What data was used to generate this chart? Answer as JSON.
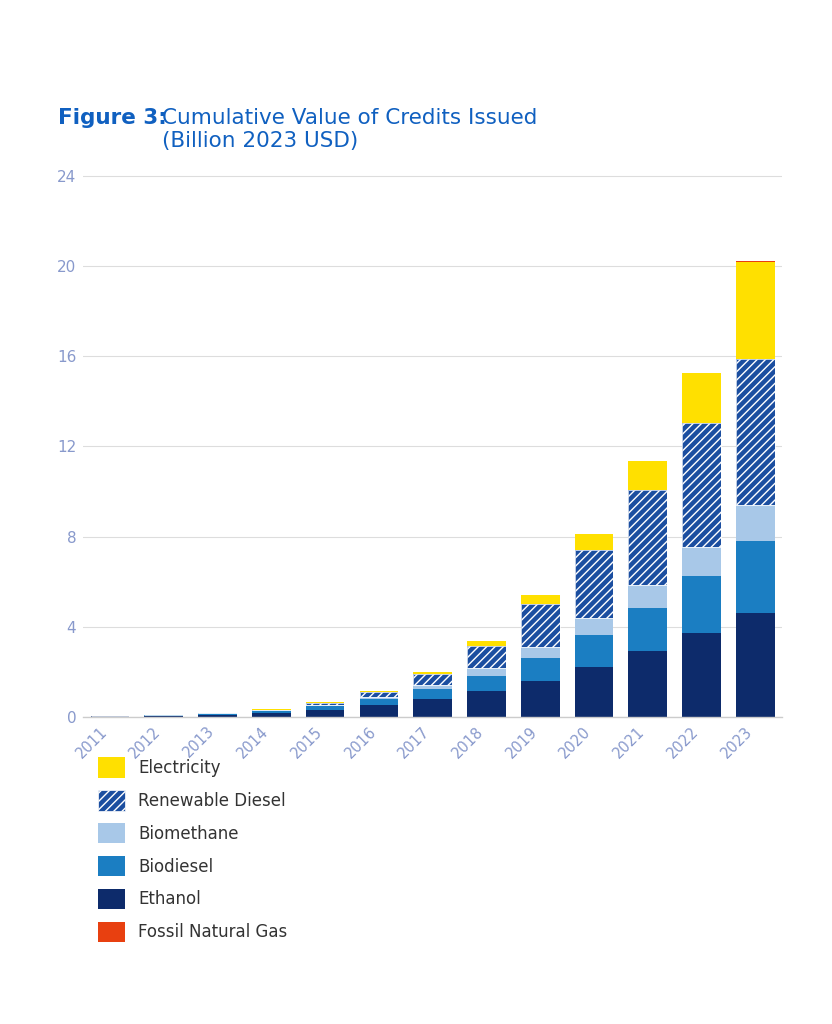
{
  "years": [
    2011,
    2012,
    2013,
    2014,
    2015,
    2016,
    2017,
    2018,
    2019,
    2020,
    2021,
    2022,
    2023
  ],
  "series": {
    "Ethanol": [
      0.02,
      0.05,
      0.1,
      0.18,
      0.32,
      0.52,
      0.8,
      1.15,
      1.6,
      2.2,
      2.9,
      3.7,
      4.6
    ],
    "Biodiesel": [
      0.01,
      0.02,
      0.04,
      0.08,
      0.15,
      0.25,
      0.42,
      0.68,
      1.0,
      1.45,
      1.95,
      2.55,
      3.2
    ],
    "Biomethane": [
      0.0,
      0.0,
      0.01,
      0.02,
      0.05,
      0.1,
      0.18,
      0.32,
      0.52,
      0.75,
      1.0,
      1.3,
      1.6
    ],
    "Renewable Diesel": [
      0.0,
      0.01,
      0.02,
      0.04,
      0.1,
      0.22,
      0.48,
      0.98,
      1.88,
      3.0,
      4.2,
      5.5,
      6.5
    ],
    "Electricity": [
      0.0,
      0.0,
      0.01,
      0.02,
      0.03,
      0.06,
      0.12,
      0.22,
      0.4,
      0.7,
      1.3,
      2.2,
      4.3
    ],
    "Fossil Natural Gas": [
      0.0,
      0.0,
      0.0,
      0.0,
      0.01,
      0.01,
      0.01,
      0.01,
      0.01,
      0.02,
      0.02,
      0.02,
      0.02
    ]
  },
  "colors": {
    "Ethanol": "#0D2B6B",
    "Biodiesel": "#1B7EC2",
    "Biomethane": "#A8C8E8",
    "Renewable Diesel": "#1B4EA0",
    "Electricity": "#FFE000",
    "Fossil Natural Gas": "#E84010"
  },
  "hatch_color": "#FFFFFF",
  "title_bold": "Figure 3:",
  "title_rest": " Cumulative Value of Credits Issued\n(Billion 2023 USD)",
  "title_color": "#1060C0",
  "ylim": [
    0,
    25
  ],
  "yticks": [
    0,
    4,
    8,
    12,
    16,
    20,
    24
  ],
  "background_color": "#FFFFFF",
  "grid_color": "#DDDDDD",
  "tick_label_color": "#8899CC",
  "legend_order": [
    "Electricity",
    "Renewable Diesel",
    "Biomethane",
    "Biodiesel",
    "Ethanol",
    "Fossil Natural Gas"
  ]
}
